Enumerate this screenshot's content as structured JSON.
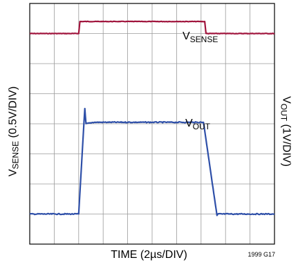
{
  "chart_data": {
    "type": "line",
    "grid": true,
    "divisions": {
      "x": 10,
      "y": 8
    },
    "xlabel_prefix": "TIME (2µs/DIV)",
    "ylabel_left": {
      "main": "V",
      "sub": "SENSE",
      "suffix": " (0.5V/DIV)"
    },
    "ylabel_right": {
      "main": "V",
      "sub": "OUT",
      "suffix": " (1V/DIV)"
    },
    "figure_id": "1999 G17",
    "series": [
      {
        "name": "VSENSE",
        "label_main": "V",
        "label_sub": "SENSE",
        "color": "#a0143c",
        "x_div": [
          0,
          2.0,
          2.05,
          7.15,
          7.2,
          10
        ],
        "y_div": [
          7.0,
          7.0,
          7.4,
          7.4,
          7.0,
          7.0
        ]
      },
      {
        "name": "VOUT",
        "label_main": "V",
        "label_sub": "OUT",
        "color": "#2e4fa8",
        "x_div": [
          0,
          2.0,
          2.25,
          2.3,
          2.6,
          7.1,
          7.65,
          7.7,
          10
        ],
        "y_div": [
          1.0,
          1.0,
          4.5,
          4.0,
          4.05,
          4.05,
          0.95,
          1.0,
          1.0
        ]
      }
    ]
  }
}
